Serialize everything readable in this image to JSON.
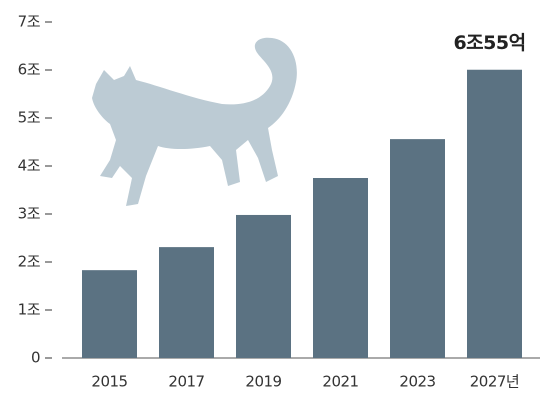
{
  "chart_data": {
    "type": "bar",
    "categories": [
      "2015",
      "2017",
      "2019",
      "2021",
      "2023",
      "2027년"
    ],
    "values": [
      1.83,
      2.31,
      2.98,
      3.75,
      4.56,
      6.0055
    ],
    "value_labels": [
      null,
      null,
      null,
      null,
      null,
      "6조55억"
    ],
    "color": "#5b7282",
    "ylim": [
      0,
      7
    ],
    "yticks": [
      0,
      {
        "value": 1,
        "label": "1조"
      },
      {
        "value": 2,
        "label": "2조"
      },
      {
        "value": 3,
        "label": "3조"
      },
      {
        "value": 4,
        "label": "4조"
      },
      {
        "value": 5,
        "label": "5조"
      },
      {
        "value": 6,
        "label": "6조"
      },
      {
        "value": 7,
        "label": "7조"
      }
    ]
  }
}
